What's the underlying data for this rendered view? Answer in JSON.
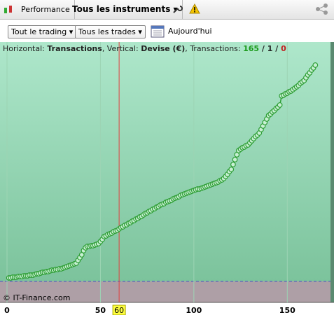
{
  "toolbar": {
    "tabs": [
      "Performance",
      "Tous les instruments"
    ]
  },
  "filters": {
    "dropdowns": [
      "Tout le trading",
      "Tous les trades"
    ],
    "date": "Aujourd'hui"
  },
  "chart_data": {
    "type": "line",
    "info": [
      "Horizontal: ",
      "Transactions",
      ", Vertical: ",
      "Devise (€)",
      ", Transactions: ",
      "165",
      " / ",
      "1",
      " / ",
      "0"
    ],
    "watermark": "© IT-Finance.com",
    "x": [
      1,
      2,
      3,
      4,
      5,
      6,
      7,
      8,
      9,
      10,
      11,
      12,
      13,
      14,
      15,
      16,
      17,
      18,
      19,
      20,
      21,
      22,
      23,
      24,
      25,
      26,
      27,
      28,
      29,
      30,
      31,
      32,
      33,
      34,
      35,
      36,
      37,
      38,
      39,
      40,
      41,
      42,
      43,
      44,
      45,
      46,
      47,
      48,
      49,
      50,
      51,
      52,
      53,
      54,
      55,
      56,
      57,
      58,
      59,
      60,
      61,
      62,
      63,
      64,
      65,
      66,
      67,
      68,
      69,
      70,
      71,
      72,
      73,
      74,
      75,
      76,
      77,
      78,
      79,
      80,
      81,
      82,
      83,
      84,
      85,
      86,
      87,
      88,
      89,
      90,
      91,
      92,
      93,
      94,
      95,
      96,
      97,
      98,
      99,
      100,
      101,
      102,
      103,
      104,
      105,
      106,
      107,
      108,
      109,
      110,
      111,
      112,
      113,
      114,
      115,
      116,
      117,
      118,
      119,
      120,
      121,
      122,
      123,
      124,
      125,
      126,
      127,
      128,
      129,
      130,
      131,
      132,
      133,
      134,
      135,
      136,
      137,
      138,
      139,
      140,
      141,
      142,
      143,
      144,
      145,
      146,
      147,
      148,
      149,
      150,
      151,
      152,
      153,
      154,
      155,
      156,
      157,
      158,
      159,
      160,
      161,
      162,
      163,
      164,
      165
    ],
    "series": [
      {
        "color": "#2e9e35",
        "values": [
          5,
          5,
          6,
          6,
          6,
          7,
          7,
          7,
          8,
          8,
          8,
          9,
          9,
          9,
          10,
          11,
          11,
          12,
          13,
          13,
          14,
          14,
          15,
          16,
          16,
          17,
          17,
          18,
          18,
          19,
          20,
          21,
          22,
          23,
          24,
          25,
          26,
          30,
          34,
          38,
          44,
          48,
          50,
          50,
          51,
          51,
          52,
          53,
          54,
          57,
          60,
          64,
          65,
          67,
          68,
          69,
          71,
          72,
          73,
          75,
          77,
          78,
          80,
          81,
          83,
          84,
          86,
          87,
          89,
          90,
          92,
          93,
          95,
          97,
          98,
          100,
          101,
          103,
          104,
          106,
          107,
          109,
          110,
          111,
          113,
          114,
          115,
          116,
          118,
          119,
          120,
          121,
          123,
          124,
          125,
          126,
          127,
          128,
          129,
          130,
          131,
          132,
          132,
          133,
          134,
          135,
          136,
          137,
          138,
          139,
          140,
          141,
          142,
          144,
          145,
          147,
          150,
          153,
          157,
          160,
          167,
          174,
          181,
          187,
          189,
          191,
          192,
          194,
          195,
          198,
          201,
          204,
          207,
          209,
          212,
          217,
          222,
          227,
          232,
          237,
          239,
          242,
          244,
          247,
          249,
          252,
          265,
          266,
          268,
          269,
          271,
          272,
          274,
          276,
          278,
          280,
          283,
          285,
          287,
          291,
          295,
          298,
          302,
          305,
          309
        ]
      }
    ],
    "xlim": [
      -3.75,
      175
    ],
    "ylim": [
      -30,
      322
    ],
    "xticks": [
      0,
      50,
      100,
      150
    ],
    "cursor": 60
  }
}
